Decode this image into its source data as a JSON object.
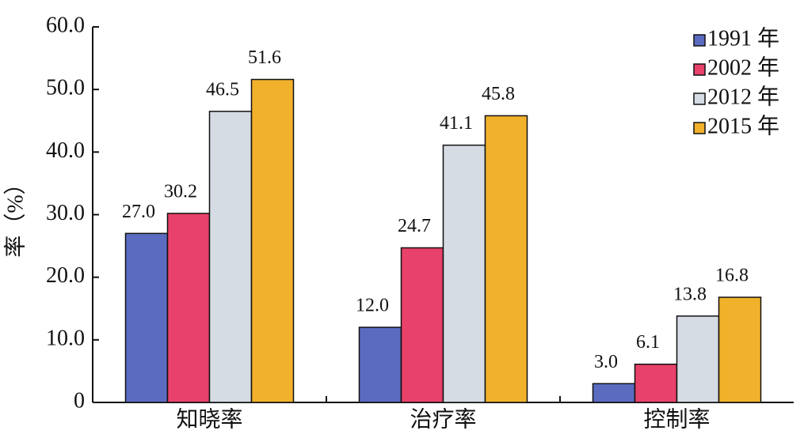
{
  "chart_data": {
    "type": "bar",
    "ylabel": "率（%）",
    "categories": [
      "知晓率",
      "治疗率",
      "控制率"
    ],
    "series": [
      {
        "name": "1991 年",
        "color": "#5b6bc0",
        "values": [
          27.0,
          12.0,
          3.0
        ],
        "value_labels": [
          "27.0",
          "12.0",
          "3.0"
        ]
      },
      {
        "name": "2002 年",
        "color": "#e8416a",
        "values": [
          30.2,
          24.7,
          6.1
        ],
        "value_labels": [
          "30.2",
          "24.7",
          "6.1"
        ]
      },
      {
        "name": "2012 年",
        "color": "#d6dce4",
        "values": [
          46.5,
          41.1,
          13.8
        ],
        "value_labels": [
          "46.5",
          "41.1",
          "13.8"
        ]
      },
      {
        "name": "2015 年",
        "color": "#f1b12b",
        "values": [
          51.6,
          45.8,
          16.8
        ],
        "value_labels": [
          "51.6",
          "45.8",
          "16.8"
        ]
      }
    ],
    "ylim": [
      0,
      60
    ],
    "yticks": [
      0,
      {
        "value": 10,
        "label": "10.0"
      },
      {
        "value": 20,
        "label": "20.0"
      },
      {
        "value": 30,
        "label": "30.0"
      },
      {
        "value": 40,
        "label": "40.0"
      },
      {
        "value": 50,
        "label": "50.0"
      },
      {
        "value": 60,
        "label": "60.0"
      }
    ],
    "legend": "upper-right"
  }
}
